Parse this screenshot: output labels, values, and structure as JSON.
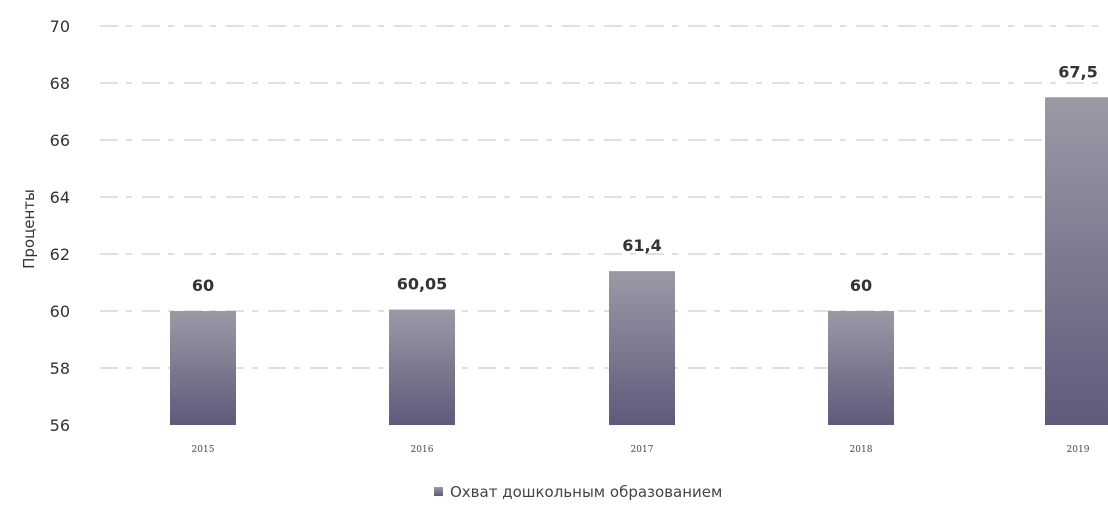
{
  "chart_data": {
    "type": "bar",
    "categories": [
      "2015",
      "2016",
      "2017",
      "2018",
      "2019"
    ],
    "series": [
      {
        "name": "Охват дошкольным образованием",
        "values": [
          60,
          60.05,
          61.4,
          60,
          67.5
        ],
        "labels": [
          "60",
          "60,05",
          "61,4",
          "60",
          "67,5"
        ]
      }
    ],
    "title": "",
    "xlabel": "",
    "ylabel": "Проценты",
    "ylim": [
      56,
      70
    ],
    "yticks": [
      "56",
      "58",
      "60",
      "62",
      "64",
      "66",
      "68",
      "70"
    ],
    "grid": true,
    "legend": "bottom-center",
    "colors": {
      "bar_top": "#9a9aa6",
      "bar_bottom": "#5f5a7a",
      "grid": "#d6d6d6"
    }
  }
}
